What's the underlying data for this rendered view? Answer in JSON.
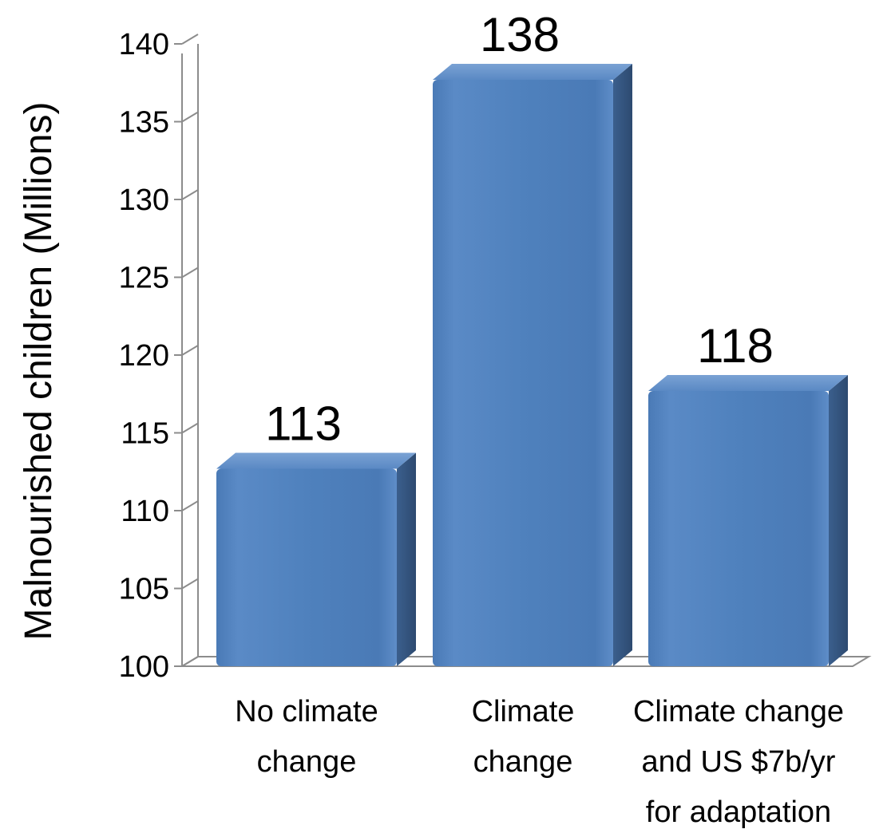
{
  "chart_data": {
    "type": "bar",
    "title": "",
    "xlabel": "",
    "ylabel": "Malnourished children (Millions)",
    "ylim": [
      100,
      140
    ],
    "yticks": [
      100,
      105,
      110,
      115,
      120,
      125,
      130,
      135,
      140
    ],
    "grid": false,
    "legend": "none",
    "categories": [
      [
        "No climate",
        "change"
      ],
      [
        "Climate",
        "change"
      ],
      [
        "Climate change",
        "and US $7b/yr",
        "for adaptation"
      ]
    ],
    "values": [
      113,
      138,
      118
    ],
    "data_labels": [
      "113",
      "138",
      "118"
    ],
    "bar_style": "3d",
    "colors": {
      "bar_front": "#4f81bd",
      "bar_side": "#34557f",
      "bar_top": "#6f97cc",
      "axis": "#8c8c8c"
    }
  }
}
